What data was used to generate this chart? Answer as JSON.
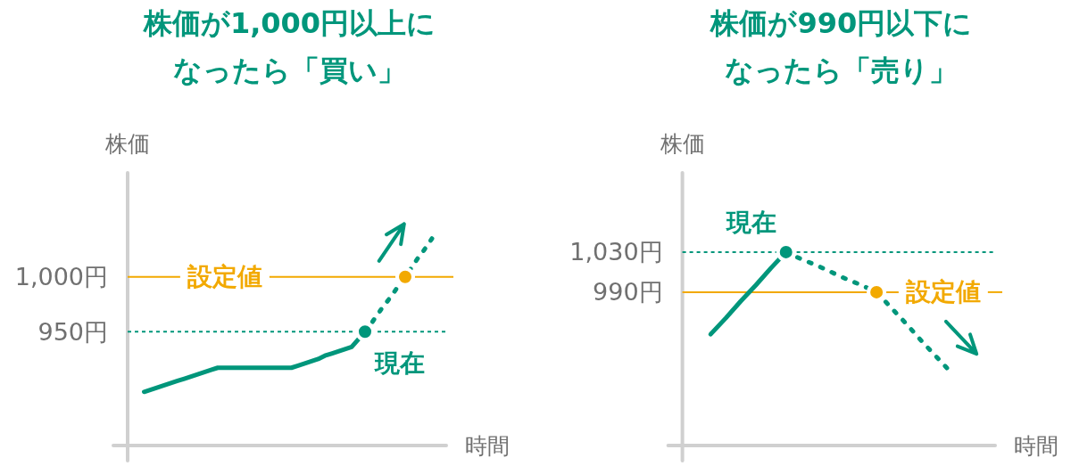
{
  "chart_data": [
    {
      "type": "line",
      "title": "株価が1,000円以上になったら「買い」",
      "ylabel": "株価",
      "xlabel": "時間",
      "categories": [
        null,
        null,
        null,
        null,
        null,
        null,
        null,
        null,
        null,
        null,
        null,
        null,
        null,
        null,
        null,
        null,
        null,
        null,
        null,
        null,
        null,
        null,
        null,
        null,
        null,
        null,
        null,
        null,
        null,
        null,
        null,
        null,
        null,
        null,
        null,
        null,
        null,
        null,
        null,
        null,
        null,
        null,
        null,
        null,
        null,
        null
      ],
      "ylim": [
        846,
        1095
      ],
      "yticks": [
        {
          "value": 950,
          "label": "950円"
        },
        {
          "value": 1000,
          "label": "1,000円"
        }
      ],
      "tick_labels": "y",
      "series": [
        {
          "color": "#00967b",
          "line_style": "solid",
          "values": [
            895,
            897,
            899,
            901,
            903,
            905,
            907,
            909,
            911,
            913,
            915,
            917,
            917,
            917,
            917,
            917,
            917,
            917,
            917,
            917,
            917,
            917,
            917,
            919,
            921,
            923,
            925,
            928,
            930,
            932,
            934,
            936,
            943,
            950,
            null,
            null,
            null,
            null,
            null,
            null,
            null,
            null,
            null,
            null,
            null,
            null
          ]
        },
        {
          "color": "#00967b",
          "line_style": "dashed",
          "values": [
            null,
            null,
            null,
            null,
            null,
            null,
            null,
            null,
            null,
            null,
            null,
            null,
            null,
            null,
            null,
            null,
            null,
            null,
            null,
            null,
            null,
            null,
            null,
            null,
            null,
            null,
            null,
            null,
            null,
            null,
            null,
            null,
            null,
            950,
            958,
            967,
            975,
            983,
            992,
            1000,
            1009,
            1018,
            1026,
            1035,
            null,
            null
          ]
        },
        {
          "type": "scatter",
          "name": "現在",
          "color": "#00967b",
          "marker": "circle",
          "values": [
            null,
            null,
            null,
            null,
            null,
            null,
            null,
            null,
            null,
            null,
            null,
            null,
            null,
            null,
            null,
            null,
            null,
            null,
            null,
            null,
            null,
            null,
            null,
            null,
            null,
            null,
            null,
            null,
            null,
            null,
            null,
            null,
            null,
            950,
            null,
            null,
            null,
            null,
            null,
            null,
            null,
            null,
            null,
            null,
            null,
            null
          ]
        },
        {
          "type": "scatter",
          "color": "#f2a900",
          "marker": "circle",
          "values": [
            null,
            null,
            null,
            null,
            null,
            null,
            null,
            null,
            null,
            null,
            null,
            null,
            null,
            null,
            null,
            null,
            null,
            null,
            null,
            null,
            null,
            null,
            null,
            null,
            null,
            null,
            null,
            null,
            null,
            null,
            null,
            null,
            null,
            null,
            null,
            null,
            null,
            null,
            null,
            1000,
            null,
            null,
            null,
            null,
            null,
            null
          ]
        }
      ],
      "ref_lines": [
        {
          "axis": "y",
          "value": 1000,
          "label": "設定値",
          "color": "#f2a900",
          "line_style": "solid"
        },
        {
          "axis": "y",
          "value": 950,
          "color": "#00967b",
          "line_style": "dashed"
        }
      ]
    },
    {
      "type": "line",
      "title": "株価が990円以下になったら「売り」",
      "ylabel": "株価",
      "xlabel": "時間",
      "categories": [
        null,
        null,
        null,
        null,
        null,
        null,
        null,
        null,
        null,
        null,
        null,
        null,
        null,
        null,
        null,
        null,
        null,
        null,
        null
      ],
      "ylim": [
        837,
        1109
      ],
      "yticks": [
        {
          "value": 990,
          "label": "990円"
        },
        {
          "value": 1030,
          "label": "1,030円"
        }
      ],
      "tick_labels": "y",
      "series": [
        {
          "color": "#00967b",
          "line_style": "solid",
          "values": [
            948,
            964,
            981,
            997,
            1014,
            1030,
            null,
            null,
            null,
            null,
            null,
            null,
            null,
            null,
            null,
            null,
            null,
            null,
            null
          ]
        },
        {
          "color": "#00967b",
          "line_style": "dashed",
          "values": [
            null,
            null,
            null,
            null,
            null,
            1030,
            1023,
            1017,
            1010,
            1003,
            997,
            990,
            974,
            958,
            941,
            925,
            909,
            null,
            null
          ]
        },
        {
          "type": "scatter",
          "name": "現在",
          "color": "#00967b",
          "marker": "circle",
          "values": [
            null,
            null,
            null,
            null,
            null,
            1030,
            null,
            null,
            null,
            null,
            null,
            null,
            null,
            null,
            null,
            null,
            null,
            null,
            null
          ]
        },
        {
          "type": "scatter",
          "color": "#f2a900",
          "marker": "circle",
          "values": [
            null,
            null,
            null,
            null,
            null,
            null,
            null,
            null,
            null,
            null,
            null,
            990,
            null,
            null,
            null,
            null,
            null,
            null,
            null
          ]
        }
      ],
      "ref_lines": [
        {
          "axis": "y",
          "value": 1030,
          "color": "#00967b",
          "line_style": "dashed"
        },
        {
          "axis": "y",
          "value": 990,
          "label": "設定値",
          "color": "#f2a900",
          "line_style": "solid"
        }
      ]
    }
  ]
}
